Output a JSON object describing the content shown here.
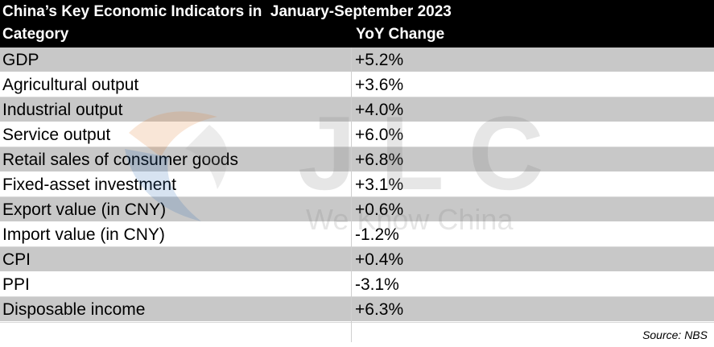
{
  "header": {
    "title": "China’s Key Economic Indicators in  January-September 2023",
    "col_category": "Category",
    "col_change": "YoY Change"
  },
  "rows": [
    {
      "category": "GDP",
      "change": "+5.2%"
    },
    {
      "category": "Agricultural output",
      "change": "+3.6%"
    },
    {
      "category": "Industrial output",
      "change": "+4.0%"
    },
    {
      "category": "Service output",
      "change": "+6.0%"
    },
    {
      "category": "Retail sales of consumer goods",
      "change": "+6.8%"
    },
    {
      "category": "Fixed-asset investment",
      "change": "+3.1%"
    },
    {
      "category": "Export value (in CNY)",
      "change": "+0.6%"
    },
    {
      "category": "Import value (in CNY)",
      "change": "-1.2%"
    },
    {
      "category": "CPI",
      "change": "+0.4%"
    },
    {
      "category": "PPI",
      "change": "-3.1%"
    },
    {
      "category": "Disposable income",
      "change": "+6.3%"
    }
  ],
  "footer": {
    "source": "Source: NBS"
  },
  "watermark": {
    "logo_text": "JLC",
    "tagline": "We Know China"
  }
}
